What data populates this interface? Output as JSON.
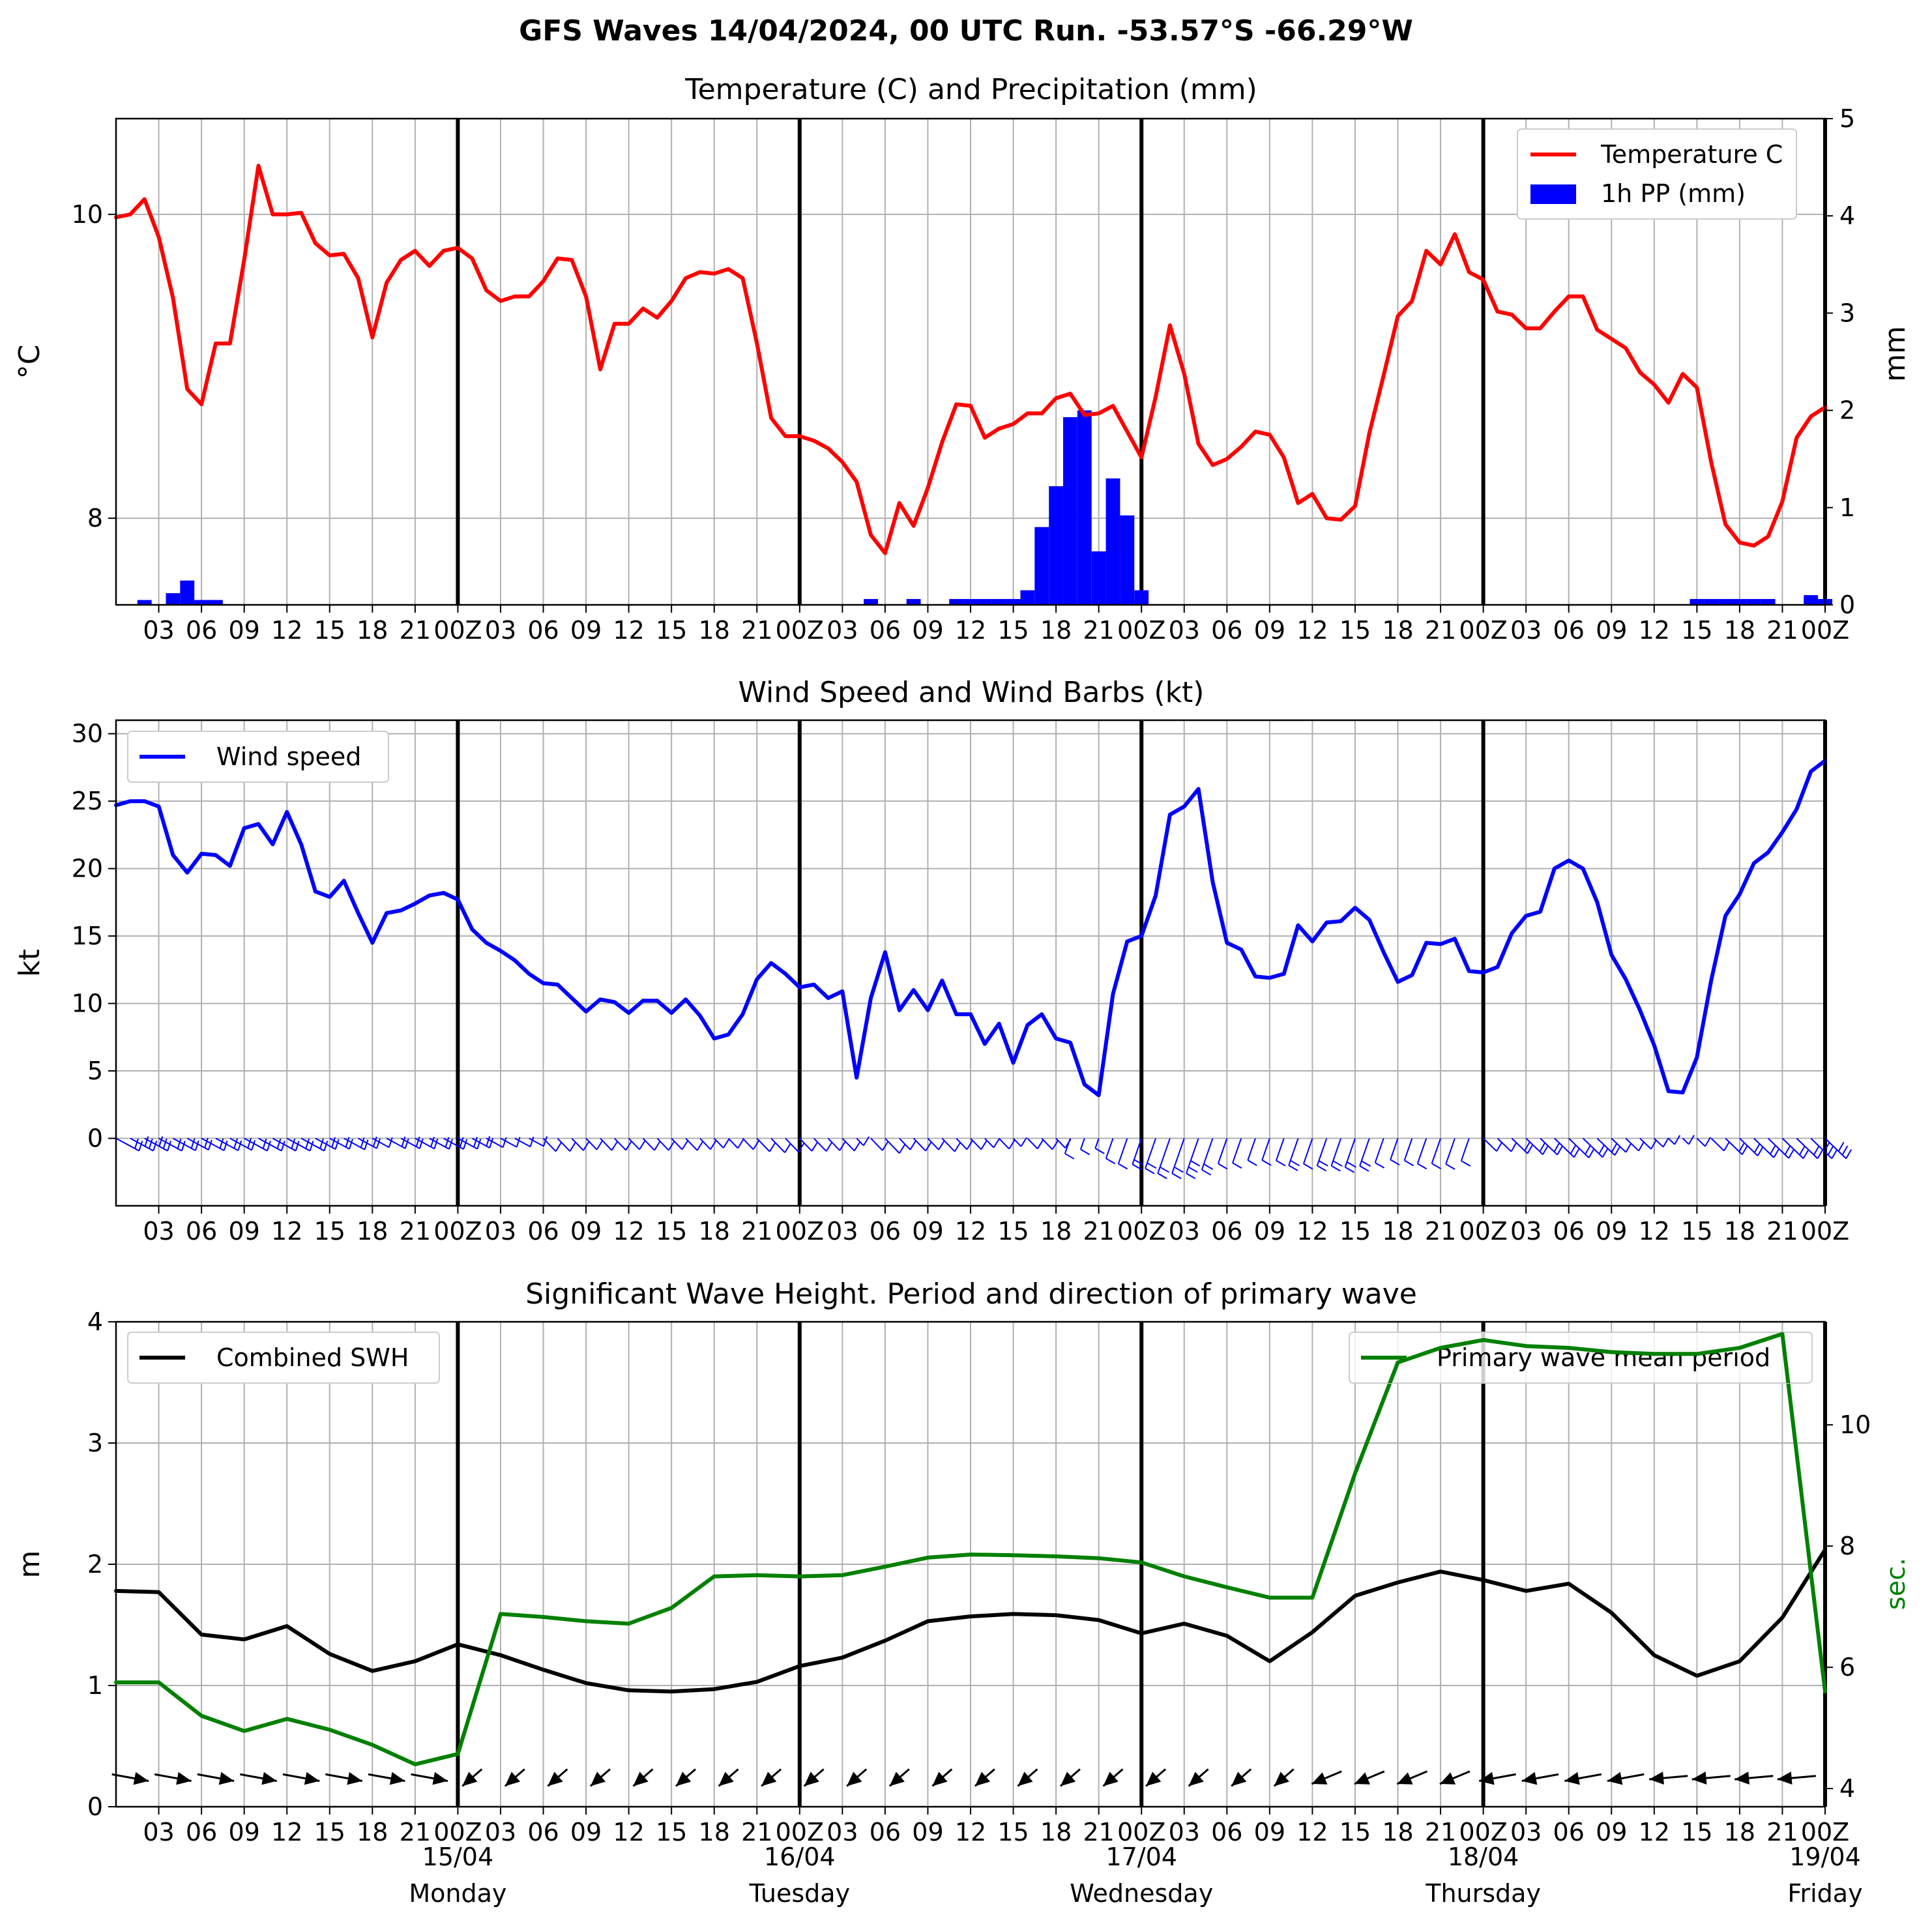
{
  "figure": {
    "suptitle": "GFS Waves 14/04/2024, 00 UTC Run. -53.57°S -66.29°W"
  },
  "colors": {
    "temperature": "#ff0000",
    "precip": "#0000ff",
    "wind": "#0000ff",
    "swh": "#000000",
    "period": "#008000",
    "grid": "#b0b0b0",
    "day_line": "#000000"
  },
  "x_axis": {
    "unit": "hours since run start (00Z 14/04/2024)",
    "range": [
      0,
      120
    ],
    "tick_hours": [
      3,
      6,
      9,
      12,
      15,
      18,
      21,
      24,
      27,
      30,
      33,
      36,
      39,
      42,
      45,
      48,
      51,
      54,
      57,
      60,
      63,
      66,
      69,
      72,
      75,
      78,
      81,
      84,
      87,
      90,
      93,
      96,
      99,
      102,
      105,
      108,
      111,
      114,
      117,
      120
    ],
    "tick_labels": [
      "03",
      "06",
      "09",
      "12",
      "15",
      "18",
      "21",
      "00Z",
      "03",
      "06",
      "09",
      "12",
      "15",
      "18",
      "21",
      "00Z",
      "03",
      "06",
      "09",
      "12",
      "15",
      "18",
      "21",
      "00Z",
      "03",
      "06",
      "09",
      "12",
      "15",
      "18",
      "21",
      "00Z",
      "03",
      "06",
      "09",
      "12",
      "15",
      "18",
      "21",
      "00Z"
    ],
    "day_line_hours": [
      24,
      48,
      72,
      96,
      120
    ],
    "day_labels": [
      {
        "hour": 24,
        "date": "15/04",
        "weekday": "Monday"
      },
      {
        "hour": 48,
        "date": "16/04",
        "weekday": "Tuesday"
      },
      {
        "hour": 72,
        "date": "17/04",
        "weekday": "Wednesday"
      },
      {
        "hour": 96,
        "date": "18/04",
        "weekday": "Thursday"
      },
      {
        "hour": 120,
        "date": "19/04",
        "weekday": "Friday"
      }
    ]
  },
  "chart_data": [
    {
      "type": "line",
      "title": "Temperature (C) and Precipitation (mm)",
      "ylabel": "$^\\circ$C",
      "ylabel_text": "°C",
      "ylim": [
        7.43,
        10.63
      ],
      "yticks": [
        8,
        10
      ],
      "y2label": "mm",
      "y2lim": [
        0,
        5
      ],
      "y2ticks": [
        0,
        1,
        2,
        3,
        4,
        5
      ],
      "legend": {
        "position": "upper right",
        "entries": [
          "Temperature C",
          "1h PP (mm)"
        ]
      },
      "grid": true,
      "series": [
        {
          "name": "Temperature C",
          "x": [
            0,
            1,
            2,
            3,
            4,
            5,
            6,
            7,
            8,
            9,
            10,
            11,
            12,
            13,
            14,
            15,
            16,
            17,
            18,
            19,
            20,
            21,
            22,
            23,
            24,
            25,
            26,
            27,
            28,
            29,
            30,
            31,
            32,
            33,
            34,
            35,
            36,
            37,
            38,
            39,
            40,
            41,
            42,
            43,
            44,
            45,
            46,
            47,
            48,
            49,
            50,
            51,
            52,
            53,
            54,
            55,
            56,
            57,
            58,
            59,
            60,
            61,
            62,
            63,
            64,
            65,
            66,
            67,
            68,
            69,
            70,
            71,
            72,
            73,
            74,
            75,
            76,
            77,
            78,
            79,
            80,
            81,
            82,
            83,
            84,
            85,
            86,
            87,
            88,
            89,
            90,
            91,
            92,
            93,
            94,
            95,
            96,
            97,
            98,
            99,
            100,
            101,
            102,
            103,
            104,
            105,
            106,
            107,
            108,
            109,
            110,
            111,
            112,
            113,
            114,
            115,
            116,
            117,
            118,
            119,
            120
          ],
          "values": [
            9.98,
            10.0,
            10.1,
            9.85,
            9.45,
            8.85,
            8.75,
            9.15,
            9.15,
            9.7,
            10.32,
            10.0,
            10.0,
            10.01,
            9.81,
            9.73,
            9.74,
            9.58,
            9.19,
            9.55,
            9.7,
            9.76,
            9.66,
            9.76,
            9.78,
            9.71,
            9.5,
            9.43,
            9.46,
            9.46,
            9.56,
            9.71,
            9.7,
            9.46,
            8.98,
            9.28,
            9.28,
            9.38,
            9.32,
            9.43,
            9.58,
            9.62,
            9.61,
            9.64,
            9.58,
            9.15,
            8.66,
            8.54,
            8.54,
            8.51,
            8.46,
            8.37,
            8.24,
            7.89,
            7.77,
            8.1,
            7.95,
            8.2,
            8.5,
            8.75,
            8.74,
            8.53,
            8.59,
            8.62,
            8.69,
            8.69,
            8.79,
            8.82,
            8.68,
            8.69,
            8.74,
            8.57,
            8.4,
            8.8,
            9.27,
            8.95,
            8.49,
            8.35,
            8.39,
            8.47,
            8.57,
            8.55,
            8.4,
            8.1,
            8.16,
            8.0,
            7.99,
            8.08,
            8.56,
            8.94,
            9.33,
            9.43,
            9.76,
            9.67,
            9.87,
            9.62,
            9.57,
            9.36,
            9.34,
            9.25,
            9.25,
            9.36,
            9.46,
            9.46,
            9.24,
            9.18,
            9.12,
            8.96,
            8.88,
            8.76,
            8.95,
            8.86,
            8.37,
            7.96,
            7.84,
            7.82,
            7.88,
            8.11,
            8.53,
            8.67,
            8.73
          ]
        },
        {
          "name": "1h PP (mm)",
          "type": "bar",
          "x": [
            2,
            4,
            5,
            6,
            7,
            53,
            56,
            59,
            60,
            61,
            62,
            63,
            64,
            65,
            66,
            67,
            68,
            69,
            70,
            71,
            72,
            111,
            112,
            113,
            114,
            115,
            116,
            119,
            120
          ],
          "values": [
            0.05,
            0.12,
            0.25,
            0.05,
            0.05,
            0.06,
            0.06,
            0.06,
            0.06,
            0.06,
            0.06,
            0.06,
            0.15,
            0.8,
            1.22,
            1.93,
            2.0,
            0.55,
            1.3,
            0.92,
            0.15,
            0.06,
            0.06,
            0.06,
            0.06,
            0.06,
            0.06,
            0.1,
            0.06
          ]
        }
      ]
    },
    {
      "type": "line",
      "title": "Wind Speed and Wind Barbs (kt)",
      "ylabel": "kt",
      "ylim": [
        -5,
        31
      ],
      "yticks": [
        0,
        5,
        10,
        15,
        20,
        25,
        30
      ],
      "legend": {
        "position": "upper left",
        "entries": [
          "Wind speed"
        ]
      },
      "grid": true,
      "series": [
        {
          "name": "Wind speed",
          "x": [
            0,
            1,
            2,
            3,
            4,
            5,
            6,
            7,
            8,
            9,
            10,
            11,
            12,
            13,
            14,
            15,
            16,
            17,
            18,
            19,
            20,
            21,
            22,
            23,
            24,
            25,
            26,
            27,
            28,
            29,
            30,
            31,
            32,
            33,
            34,
            35,
            36,
            37,
            38,
            39,
            40,
            41,
            42,
            43,
            44,
            45,
            46,
            47,
            48,
            49,
            50,
            51,
            52,
            53,
            54,
            55,
            56,
            57,
            58,
            59,
            60,
            61,
            62,
            63,
            64,
            65,
            66,
            67,
            68,
            69,
            70,
            71,
            72,
            73,
            74,
            75,
            76,
            77,
            78,
            79,
            80,
            81,
            82,
            83,
            84,
            85,
            86,
            87,
            88,
            89,
            90,
            91,
            92,
            93,
            94,
            95,
            96,
            97,
            98,
            99,
            100,
            101,
            102,
            103,
            104,
            105,
            106,
            107,
            108,
            109,
            110,
            111,
            112,
            113,
            114,
            115,
            116,
            117,
            118,
            119,
            120
          ],
          "values": [
            24.7,
            25.0,
            25.0,
            24.6,
            21.0,
            19.7,
            21.1,
            21.0,
            20.2,
            23.0,
            23.3,
            21.8,
            24.2,
            21.8,
            18.3,
            17.9,
            19.1,
            16.7,
            14.5,
            16.7,
            16.9,
            17.4,
            18.0,
            18.2,
            17.7,
            15.5,
            14.5,
            13.9,
            13.2,
            12.2,
            11.5,
            11.4,
            10.4,
            9.4,
            10.3,
            10.1,
            9.3,
            10.2,
            10.2,
            9.3,
            10.3,
            9.1,
            7.4,
            7.7,
            9.2,
            11.8,
            13.0,
            12.2,
            11.2,
            11.4,
            10.4,
            10.9,
            4.5,
            10.4,
            13.8,
            9.5,
            11.0,
            9.5,
            11.7,
            9.2,
            9.2,
            7.0,
            8.5,
            5.6,
            8.4,
            9.2,
            7.4,
            7.1,
            4.0,
            3.2,
            10.7,
            14.6,
            15.0,
            18.0,
            24.0,
            24.6,
            25.9,
            19.0,
            14.5,
            14.0,
            12.0,
            11.9,
            12.2,
            15.8,
            14.6,
            16.0,
            16.1,
            17.1,
            16.2,
            13.8,
            11.6,
            12.1,
            14.5,
            14.4,
            14.8,
            12.4,
            12.3,
            12.7,
            15.2,
            16.5,
            16.8,
            20.0,
            20.6,
            20.0,
            17.5,
            13.6,
            11.8,
            9.5,
            6.9,
            3.5,
            3.4,
            6.0,
            11.7,
            16.5,
            18.1,
            20.4,
            21.2,
            22.7,
            24.4,
            27.2,
            28.0
          ]
        }
      ]
    },
    {
      "type": "line",
      "title": "Significant Wave Height. Period and direction of primary wave",
      "ylabel": "m",
      "ylim": [
        0,
        4
      ],
      "yticks": [
        0,
        1,
        2,
        3,
        4
      ],
      "y2label": "sec.",
      "y2lim": [
        3.7,
        11.7
      ],
      "y2ticks": [
        4,
        6,
        8,
        10
      ],
      "legend": {
        "positions": [
          "upper left",
          "upper right"
        ],
        "entries": [
          "Combined SWH",
          "Primary wave mean period"
        ]
      },
      "grid": true,
      "series": [
        {
          "name": "Combined SWH",
          "x": [
            0,
            3,
            6,
            9,
            12,
            15,
            18,
            21,
            24,
            27,
            30,
            33,
            36,
            39,
            42,
            45,
            48,
            51,
            54,
            57,
            60,
            63,
            66,
            69,
            72,
            75,
            78,
            81,
            84,
            87,
            90,
            93,
            96,
            99,
            102,
            105,
            108,
            111,
            114,
            117,
            120
          ],
          "values": [
            1.78,
            1.77,
            1.42,
            1.38,
            1.49,
            1.26,
            1.12,
            1.2,
            1.34,
            1.25,
            1.13,
            1.02,
            0.96,
            0.95,
            0.97,
            1.03,
            1.16,
            1.23,
            1.37,
            1.53,
            1.57,
            1.59,
            1.58,
            1.54,
            1.43,
            1.51,
            1.41,
            1.2,
            1.44,
            1.74,
            1.85,
            1.94,
            1.87,
            1.78,
            1.84,
            1.6,
            1.25,
            1.08,
            1.2,
            1.56,
            2.12
          ]
        },
        {
          "name": "Primary wave mean period",
          "axis": "right",
          "x": [
            0,
            3,
            6,
            9,
            12,
            15,
            18,
            21,
            24,
            27,
            30,
            33,
            36,
            39,
            42,
            45,
            48,
            51,
            54,
            57,
            60,
            63,
            66,
            69,
            72,
            75,
            78,
            81,
            84,
            87,
            90,
            93,
            96,
            99,
            102,
            105,
            108,
            111,
            114,
            117,
            120
          ],
          "values": [
            5.75,
            5.75,
            5.2,
            4.95,
            5.15,
            4.97,
            4.72,
            4.4,
            4.57,
            6.88,
            6.83,
            6.76,
            6.72,
            6.98,
            7.5,
            7.52,
            7.5,
            7.52,
            7.66,
            7.81,
            7.86,
            7.85,
            7.83,
            7.8,
            7.73,
            7.5,
            7.32,
            7.15,
            7.15,
            9.2,
            11.03,
            11.27,
            11.4,
            11.3,
            11.27,
            11.2,
            11.17,
            11.17,
            11.27,
            11.5,
            5.6
          ]
        }
      ]
    }
  ],
  "wind_barbs": {
    "x": [
      0,
      1,
      2,
      3,
      4,
      5,
      6,
      7,
      8,
      9,
      10,
      11,
      12,
      13,
      14,
      15,
      16,
      17,
      18,
      19,
      20,
      21,
      22,
      23,
      24,
      25,
      26,
      27,
      28,
      29,
      30,
      31,
      32,
      33,
      34,
      35,
      36,
      37,
      38,
      39,
      40,
      41,
      42,
      43,
      44,
      45,
      46,
      47,
      48,
      49,
      50,
      51,
      52,
      53,
      54,
      55,
      56,
      57,
      58,
      59,
      60,
      61,
      62,
      63,
      64,
      65,
      66,
      67,
      68,
      69,
      70,
      71,
      72,
      73,
      74,
      75,
      76,
      77,
      78,
      79,
      80,
      81,
      82,
      83,
      84,
      85,
      86,
      87,
      88,
      89,
      90,
      91,
      92,
      93,
      94,
      95,
      96,
      97,
      98,
      99,
      100,
      101,
      102,
      103,
      104,
      105,
      106,
      107,
      108,
      109,
      110,
      111,
      112,
      113,
      114,
      115,
      116,
      117,
      118,
      119,
      120
    ],
    "direction_deg": [
      288,
      288,
      288,
      288,
      288,
      288,
      288,
      288,
      288,
      288,
      288,
      288,
      288,
      288,
      288,
      288,
      288,
      288,
      288,
      288,
      288,
      288,
      288,
      288,
      288,
      288,
      288,
      288,
      288,
      288,
      302,
      302,
      302,
      302,
      302,
      302,
      302,
      302,
      302,
      302,
      302,
      302,
      302,
      302,
      302,
      302,
      302,
      302,
      302,
      302,
      302,
      302,
      302,
      302,
      302,
      302,
      302,
      302,
      302,
      302,
      302,
      302,
      302,
      302,
      302,
      302,
      302,
      30,
      30,
      30,
      30,
      30,
      30,
      30,
      30,
      30,
      30,
      30,
      30,
      30,
      30,
      30,
      30,
      30,
      30,
      30,
      30,
      30,
      30,
      30,
      30,
      30,
      30,
      30,
      30,
      30,
      300,
      300,
      300,
      300,
      300,
      300,
      300,
      300,
      300,
      300,
      300,
      300,
      300,
      300,
      300,
      300,
      300,
      300,
      300,
      300,
      300,
      300,
      300,
      300,
      300
    ]
  },
  "wave_arrows": {
    "x": [
      1,
      4,
      7,
      10,
      13,
      16,
      19,
      22,
      25,
      28,
      31,
      34,
      37,
      40,
      43,
      46,
      49,
      52,
      55,
      58,
      61,
      64,
      67,
      70,
      73,
      76,
      79,
      82,
      85,
      88,
      91,
      94,
      97,
      100,
      103,
      106,
      109,
      112,
      115,
      118
    ],
    "direction_deg": [
      290,
      290,
      290,
      290,
      290,
      290,
      290,
      290,
      30,
      30,
      30,
      30,
      30,
      30,
      30,
      30,
      30,
      30,
      30,
      30,
      30,
      30,
      30,
      30,
      30,
      30,
      30,
      30,
      50,
      50,
      50,
      50,
      70,
      70,
      70,
      70,
      80,
      80,
      80,
      80
    ]
  }
}
